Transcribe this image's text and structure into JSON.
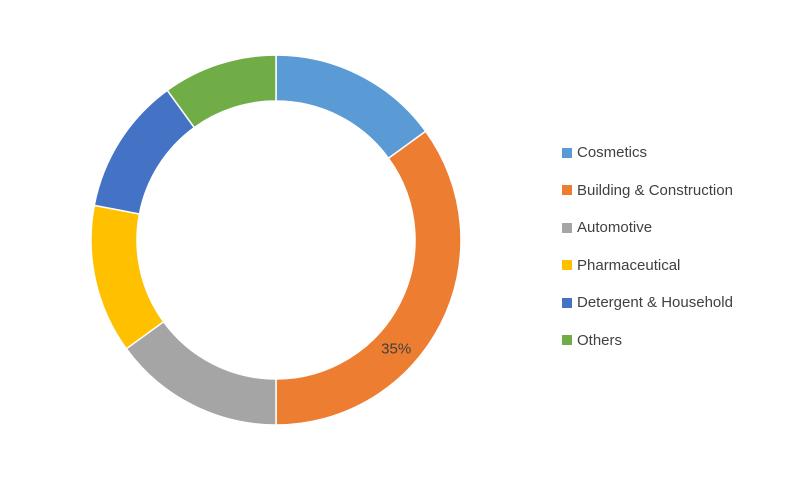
{
  "chart_data": {
    "type": "pie",
    "variant": "donut",
    "categories": [
      "Cosmetics",
      "Building & Construction",
      "Automotive",
      "Pharmaceutical",
      "Detergent & Household",
      "Others"
    ],
    "values": [
      15,
      35,
      15,
      13,
      12,
      10
    ],
    "unit": "%",
    "colors": [
      "#5B9BD5",
      "#ED7D31",
      "#A5A5A5",
      "#FFC000",
      "#4472C4",
      "#70AD47"
    ],
    "data_labels": [
      {
        "category": "Building & Construction",
        "text": "35%"
      }
    ],
    "legend_position": "right"
  }
}
